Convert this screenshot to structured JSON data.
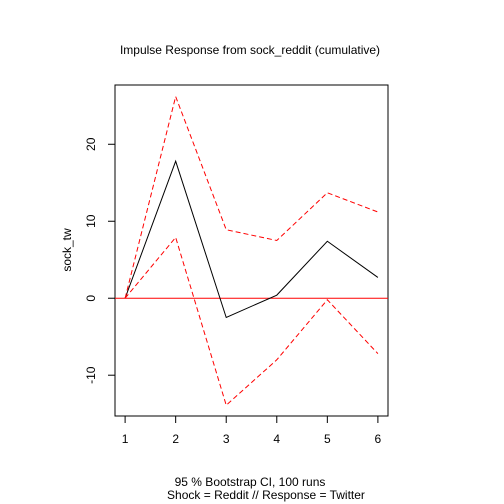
{
  "chart_data": {
    "type": "line",
    "title": "Impulse Response from sock_reddit (cumulative)",
    "xlabel": "",
    "ylabel": "sock_tw",
    "footer_lines": [
      "95 % Bootstrap CI,  100 runs",
      "Shock = Reddit // Response = Twitter"
    ],
    "x": [
      1,
      2,
      3,
      4,
      5,
      6
    ],
    "xlim": [
      0.8,
      6.2
    ],
    "ylim": [
      -15.3,
      27.7
    ],
    "x_ticks": [
      1,
      2,
      3,
      4,
      5,
      6
    ],
    "y_ticks": [
      -10,
      0,
      10,
      20
    ],
    "grid": false,
    "legend": "none",
    "series": [
      {
        "key": "response",
        "values": [
          0,
          17.8,
          -2.5,
          0.4,
          7.4,
          2.7
        ],
        "color": "#000000",
        "style": "solid"
      },
      {
        "key": "upper",
        "values": [
          0,
          26.2,
          8.9,
          7.5,
          13.7,
          11.2
        ],
        "color": "#ff0000",
        "style": "dashed"
      },
      {
        "key": "lower",
        "values": [
          0,
          7.9,
          -13.9,
          -8.0,
          -0.2,
          -7.2
        ],
        "color": "#ff0000",
        "style": "dashed"
      }
    ],
    "reference_line": {
      "y": 0,
      "color": "#ff0000"
    }
  }
}
